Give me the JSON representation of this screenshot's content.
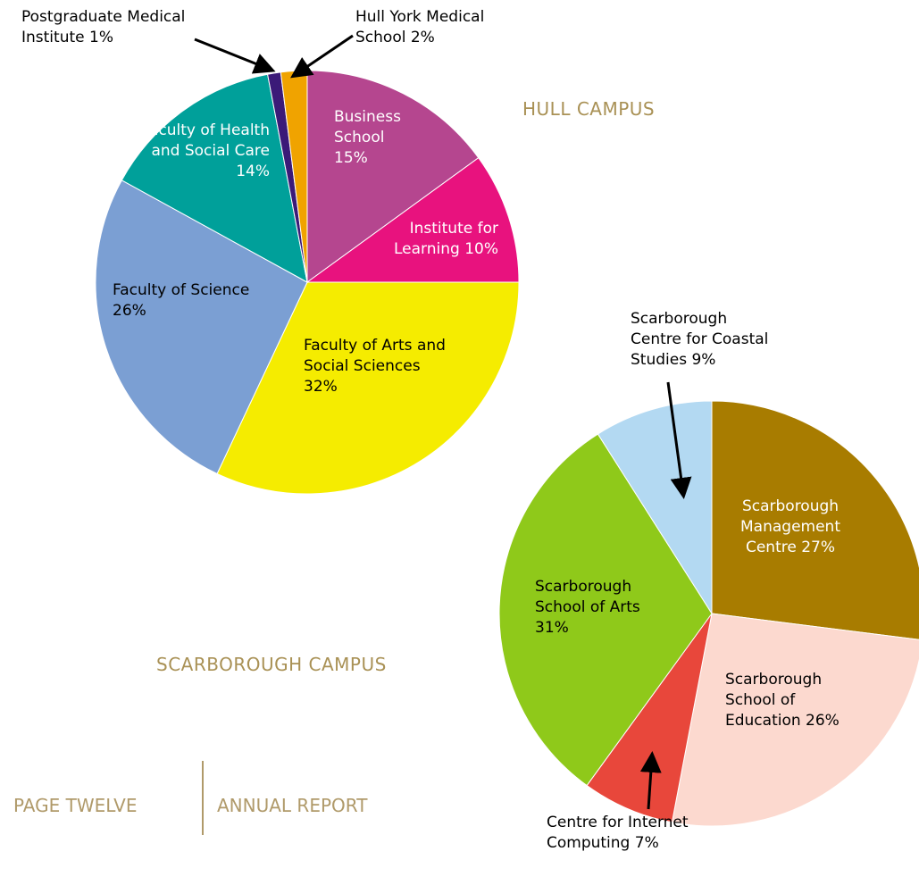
{
  "chart_data": [
    {
      "type": "pie",
      "title": "HULL CAMPUS",
      "categories": [
        "Business School",
        "Institute for Learning",
        "Faculty of Arts and Social Sciences",
        "Faculty of Science",
        "Faculty of Health and Social Care",
        "Postgraduate Medical Institute",
        "Hull York Medical School"
      ],
      "values": [
        15,
        10,
        32,
        26,
        14,
        1,
        2
      ],
      "value_labels": [
        "15%",
        "10%",
        "32%",
        "26%",
        "14%",
        "1%",
        "2%"
      ],
      "colors": [
        "#b5468f",
        "#e8127e",
        "#f5ec00",
        "#7b9fd3",
        "#00a09a",
        "#3b1a78",
        "#f0a300"
      ]
    },
    {
      "type": "pie",
      "title": "SCARBOROUGH CAMPUS",
      "categories": [
        "Scarborough Management Centre",
        "Scarborough School of Education",
        "Centre for Internet Computing",
        "Scarborough School of Arts",
        "Scarborough Centre for Coastal Studies"
      ],
      "values": [
        27,
        26,
        7,
        31,
        9
      ],
      "value_labels": [
        "27%",
        "26%",
        "7%",
        "31%",
        "9%"
      ],
      "colors": [
        "#a87c00",
        "#fcd9cf",
        "#e8473b",
        "#8fc91a",
        "#b3d9f2"
      ]
    }
  ],
  "footer": {
    "left": "PAGE TWELVE",
    "right": "ANNUAL REPORT"
  }
}
